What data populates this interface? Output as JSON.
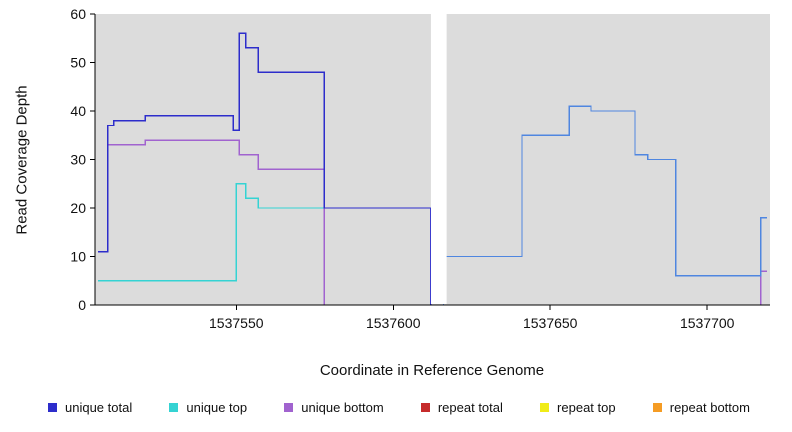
{
  "figure": {
    "background": "#ffffff",
    "panel_background": "#dcdcdc",
    "gap_color": "#ffffff"
  },
  "chart_data": {
    "type": "line",
    "subtype": "step-coverage",
    "title": "",
    "xlabel": "Coordinate in Reference Genome",
    "ylabel": "Read Coverage Depth",
    "xlim": [
      1537505,
      1537720
    ],
    "ylim": [
      0,
      60
    ],
    "x_ticks": [
      1537550,
      1537600,
      1537650,
      1537700
    ],
    "y_ticks": [
      0,
      10,
      20,
      30,
      40,
      50,
      60
    ],
    "grid": false,
    "panel_color": "#dcdcdc",
    "gap_x": [
      1537612,
      1537617
    ],
    "series": [
      {
        "name": "repeat top",
        "color": "#f0ec18",
        "segments": [
          {
            "points": [
              [
                1537506,
                0
              ],
              [
                1537719,
                0
              ]
            ]
          }
        ]
      },
      {
        "name": "repeat total",
        "color": "#c62b2b",
        "segments": [
          {
            "points": [
              [
                1537506,
                0
              ],
              [
                1537719,
                0
              ]
            ]
          }
        ]
      },
      {
        "name": "repeat bottom",
        "color": "#f59c24",
        "segments": [
          {
            "points": [
              [
                1537506,
                0
              ],
              [
                1537578,
                0
              ]
            ]
          }
        ]
      },
      {
        "name": "unique top",
        "color": "#35d3d3",
        "segments": [
          {
            "points": [
              [
                1537506,
                5
              ],
              [
                1537550,
                5
              ],
              [
                1537550,
                25
              ],
              [
                1537553,
                25
              ],
              [
                1537553,
                22
              ],
              [
                1537557,
                22
              ],
              [
                1537557,
                20
              ],
              [
                1537578,
                20
              ],
              [
                1537578,
                0
              ]
            ]
          }
        ]
      },
      {
        "name": "unique bottom",
        "color": "#a163cf",
        "segments": [
          {
            "points": [
              [
                1537509,
                33
              ],
              [
                1537521,
                33
              ],
              [
                1537521,
                34
              ],
              [
                1537551,
                34
              ],
              [
                1537551,
                31
              ],
              [
                1537557,
                31
              ],
              [
                1537557,
                28
              ],
              [
                1537578,
                28
              ],
              [
                1537578,
                0
              ]
            ]
          },
          {
            "points": [
              [
                1537717,
                0
              ],
              [
                1537717,
                7
              ],
              [
                1537719,
                7
              ]
            ]
          }
        ]
      },
      {
        "name": "unique total",
        "color": "#2d2dcb",
        "segments": [
          {
            "points": [
              [
                1537506,
                11
              ],
              [
                1537509,
                11
              ],
              [
                1537509,
                37
              ],
              [
                1537511,
                37
              ],
              [
                1537511,
                38
              ],
              [
                1537521,
                38
              ],
              [
                1537521,
                39
              ],
              [
                1537549,
                39
              ],
              [
                1537549,
                36
              ],
              [
                1537551,
                36
              ],
              [
                1537551,
                56
              ],
              [
                1537553,
                56
              ],
              [
                1537553,
                53
              ],
              [
                1537557,
                53
              ],
              [
                1537557,
                48
              ],
              [
                1537578,
                48
              ],
              [
                1537578,
                20
              ],
              [
                1537612,
                20
              ],
              [
                1537612,
                0
              ]
            ]
          },
          {
            "color": "#4f86e0",
            "points": [
              [
                1537616,
                0
              ],
              [
                1537616,
                10
              ],
              [
                1537641,
                10
              ],
              [
                1537641,
                35
              ],
              [
                1537656,
                35
              ],
              [
                1537656,
                41
              ],
              [
                1537663,
                41
              ],
              [
                1537663,
                40
              ],
              [
                1537677,
                40
              ],
              [
                1537677,
                31
              ],
              [
                1537681,
                31
              ],
              [
                1537681,
                30
              ],
              [
                1537690,
                30
              ],
              [
                1537690,
                6
              ],
              [
                1537717,
                6
              ],
              [
                1537717,
                18
              ],
              [
                1537719,
                18
              ]
            ]
          }
        ]
      }
    ],
    "legend": {
      "position": "bottom",
      "items": [
        {
          "label": "unique total",
          "color": "#2d2dcb"
        },
        {
          "label": "unique top",
          "color": "#35d3d3"
        },
        {
          "label": "unique bottom",
          "color": "#a163cf"
        },
        {
          "label": "repeat total",
          "color": "#c62b2b"
        },
        {
          "label": "repeat top",
          "color": "#f0ec18"
        },
        {
          "label": "repeat bottom",
          "color": "#f59c24"
        }
      ]
    }
  }
}
